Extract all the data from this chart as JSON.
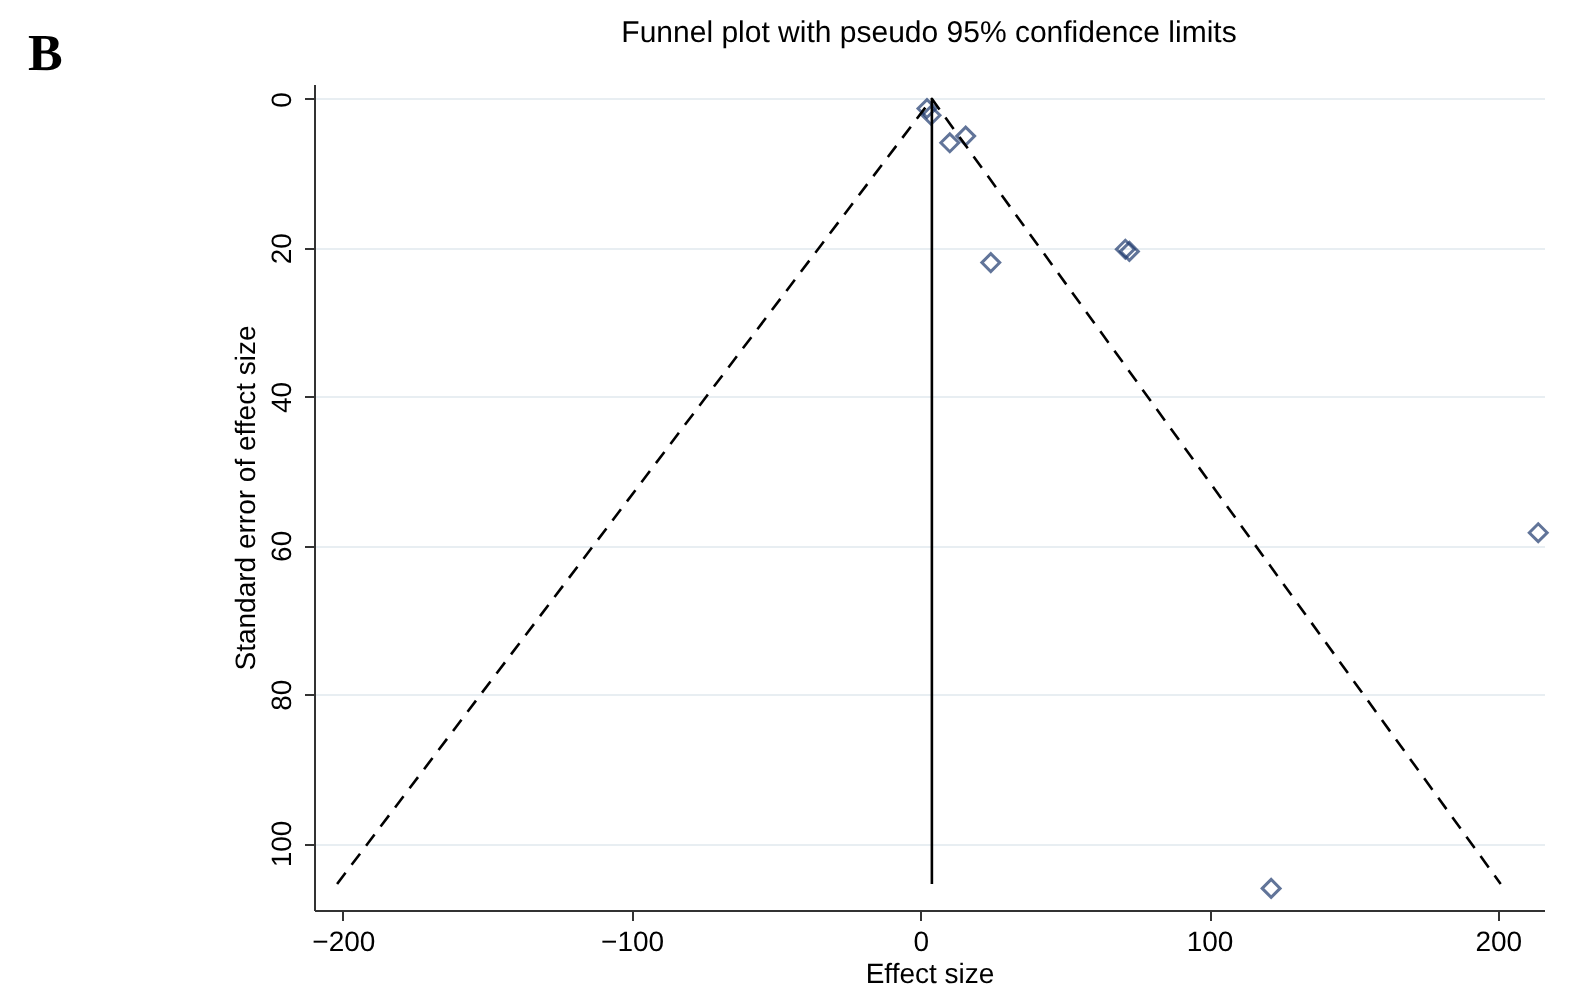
{
  "chart_data": {
    "type": "scatter",
    "title": "Funnel plot with pseudo 95% confidence limits",
    "xlabel": "Effect size",
    "ylabel": "Standard error of effect size",
    "annotations": [
      "B"
    ],
    "series": [
      {
        "color": "#1f3a6e",
        "marker": "diamond",
        "x": [
          2.3,
          3.7,
          10.2,
          15.7,
          24.4,
          71,
          72.4,
          214,
          121.5
        ],
        "values": [
          1.3,
          2.2,
          5.9,
          5.0,
          22,
          20.2,
          20.5,
          58.3,
          106.1
        ]
      },
      {
        "type": "line",
        "color": "#000000",
        "line_style": "dashed",
        "x": [
          -202,
          4,
          201
        ],
        "values": [
          105.5,
          0,
          105.5
        ]
      }
    ],
    "ref_lines": [
      {
        "axis": "x",
        "value": 4,
        "color": "#000000"
      }
    ],
    "xlim": [
      -210,
      216
    ],
    "xticks": [
      -200,
      -100,
      0,
      100,
      200
    ],
    "ylim": [
      109,
      -2
    ],
    "yticks": [
      0,
      20,
      40,
      60,
      80,
      100
    ],
    "grid": "y"
  }
}
